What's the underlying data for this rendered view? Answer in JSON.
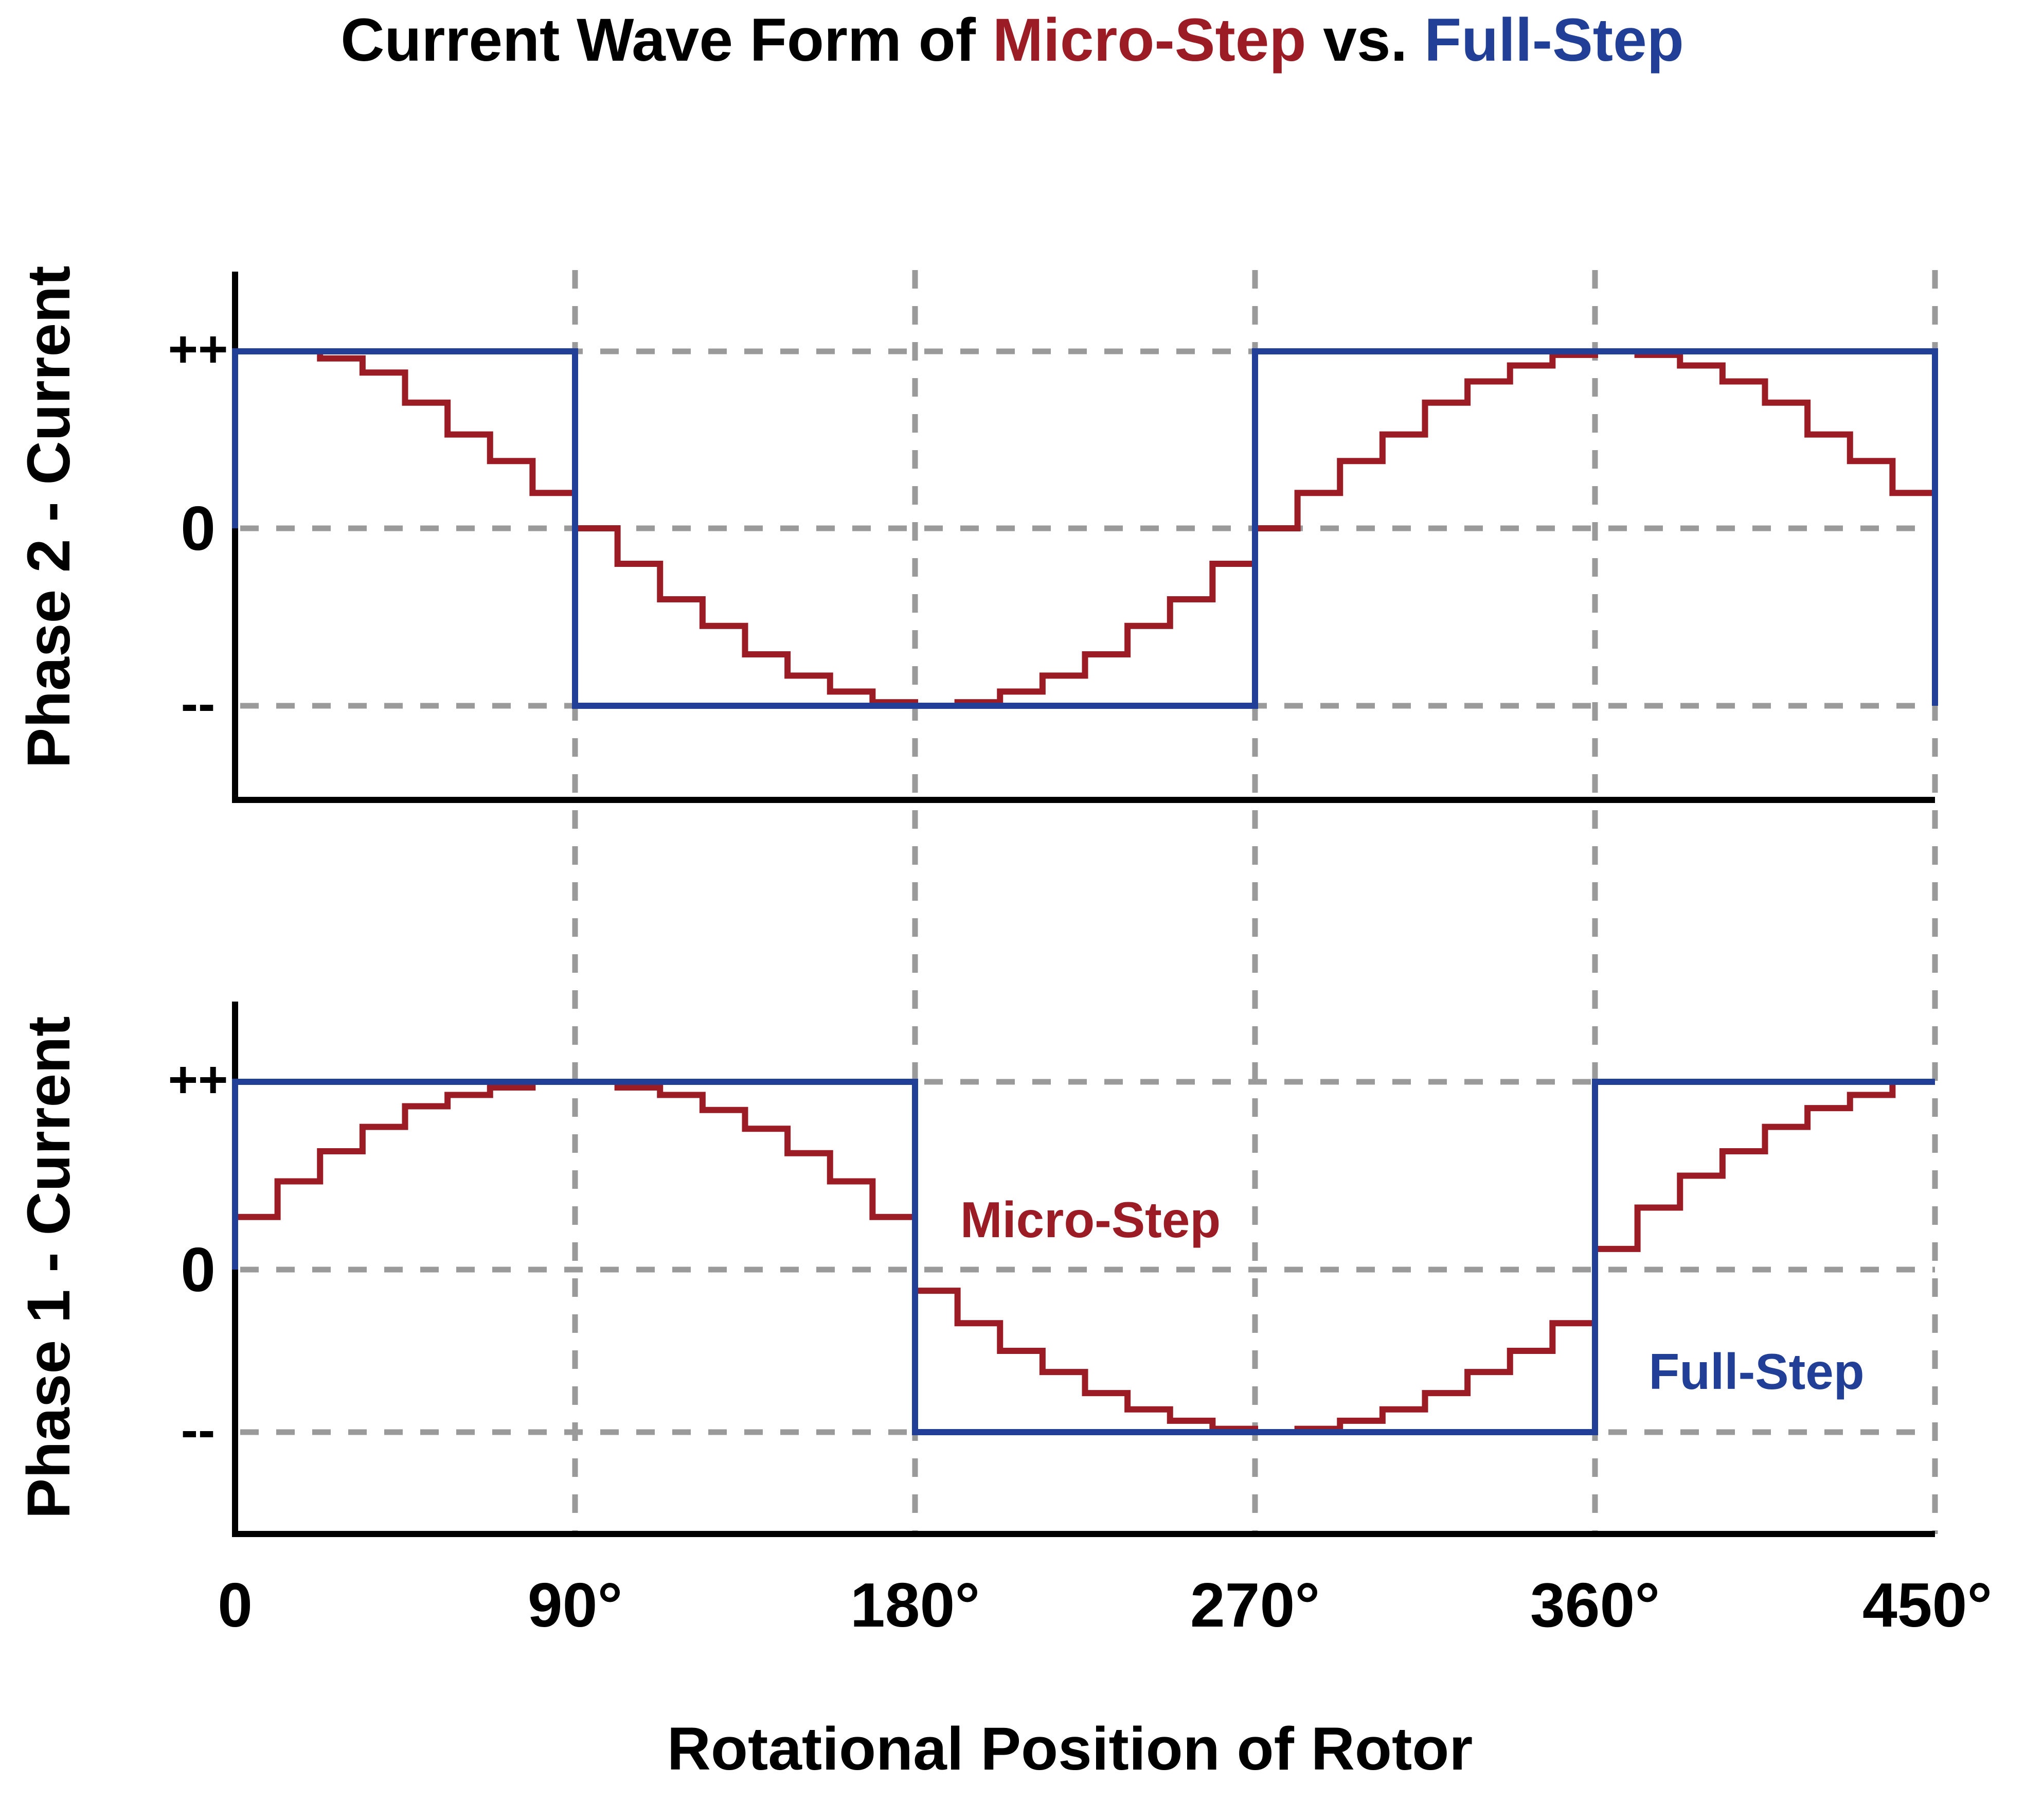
{
  "title": {
    "part1": "Current Wave Form of ",
    "part2": "Micro-Step",
    "part3": " vs. ",
    "part4": "Full-Step"
  },
  "colors": {
    "micro": "#9b1c24",
    "full": "#213f96",
    "grid": "#9a9a9a",
    "axis": "#000000",
    "text": "#000000"
  },
  "chart_data": {
    "type": "line",
    "xlabel": "Rotational Position of Rotor",
    "x_ticks": [
      "0",
      "90°",
      "180°",
      "270°",
      "360°",
      "450°"
    ],
    "x_tick_values": [
      0,
      90,
      180,
      270,
      360,
      450
    ],
    "xlim": [
      0,
      450
    ],
    "y_tick_labels": [
      "++",
      "0",
      "--"
    ],
    "y_tick_values": [
      1,
      0,
      -1
    ],
    "grid": "dashed",
    "series_names": [
      "Micro-Step",
      "Full-Step"
    ],
    "microstep_size_deg": 11.25,
    "panels": [
      {
        "ylabel": "Phase 2 - Current",
        "ylim": [
          -1.5,
          1.5
        ],
        "series": [
          {
            "name": "Micro-Step",
            "style": "step",
            "x": [
              0,
              11.25,
              22.5,
              33.75,
              45,
              56.25,
              67.5,
              78.75,
              90,
              101.25,
              112.5,
              123.75,
              135,
              146.25,
              157.5,
              168.75,
              180,
              191.25,
              202.5,
              213.75,
              225,
              236.25,
              247.5,
              258.75,
              270,
              281.25,
              292.5,
              303.75,
              315,
              326.25,
              337.5,
              348.75,
              360,
              371.25,
              382.5,
              393.75,
              405,
              416.25,
              427.5,
              438.75,
              450
            ],
            "y": [
              1,
              1,
              0.96,
              0.88,
              0.71,
              0.53,
              0.38,
              0.2,
              0,
              -0.2,
              -0.4,
              -0.55,
              -0.71,
              -0.83,
              -0.92,
              -0.98,
              -1,
              -0.98,
              -0.92,
              -0.83,
              -0.71,
              -0.55,
              -0.4,
              -0.2,
              0,
              0.2,
              0.38,
              0.53,
              0.71,
              0.83,
              0.92,
              0.98,
              1,
              0.98,
              0.92,
              0.83,
              0.71,
              0.53,
              0.38,
              0.2,
              0
            ]
          },
          {
            "name": "Full-Step",
            "style": "step",
            "x": [
              0,
              90,
              270,
              450
            ],
            "y": [
              1,
              -1,
              1,
              -1
            ]
          }
        ]
      },
      {
        "ylabel": "Phase 1 - Current",
        "ylim": [
          -1.5,
          1.5
        ],
        "annotations": [
          "Micro-Step",
          "Full-Step"
        ],
        "series": [
          {
            "name": "Micro-Step",
            "style": "step",
            "x": [
              0,
              11.25,
              22.5,
              33.75,
              45,
              56.25,
              67.5,
              78.75,
              90,
              101.25,
              112.5,
              123.75,
              135,
              146.25,
              157.5,
              168.75,
              180,
              191.25,
              202.5,
              213.75,
              225,
              236.25,
              247.5,
              258.75,
              270,
              281.25,
              292.5,
              303.75,
              315,
              326.25,
              337.5,
              348.75,
              360,
              371.25,
              382.5,
              393.75,
              405,
              416.25,
              427.5,
              438.75,
              450
            ],
            "y": [
              0.28,
              0.47,
              0.63,
              0.76,
              0.87,
              0.93,
              0.97,
              1,
              1,
              0.97,
              0.93,
              0.85,
              0.75,
              0.62,
              0.47,
              0.28,
              -0.13,
              -0.33,
              -0.5,
              -0.63,
              -0.76,
              -0.86,
              -0.93,
              -0.98,
              -1,
              -0.98,
              -0.93,
              -0.86,
              -0.76,
              -0.63,
              -0.5,
              -0.33,
              0.11,
              0.33,
              0.5,
              0.63,
              0.76,
              0.86,
              0.93,
              1,
              1
            ]
          },
          {
            "name": "Full-Step",
            "style": "step",
            "x": [
              0,
              180,
              360,
              450
            ],
            "y": [
              1,
              -1,
              1,
              1
            ]
          }
        ]
      }
    ]
  }
}
